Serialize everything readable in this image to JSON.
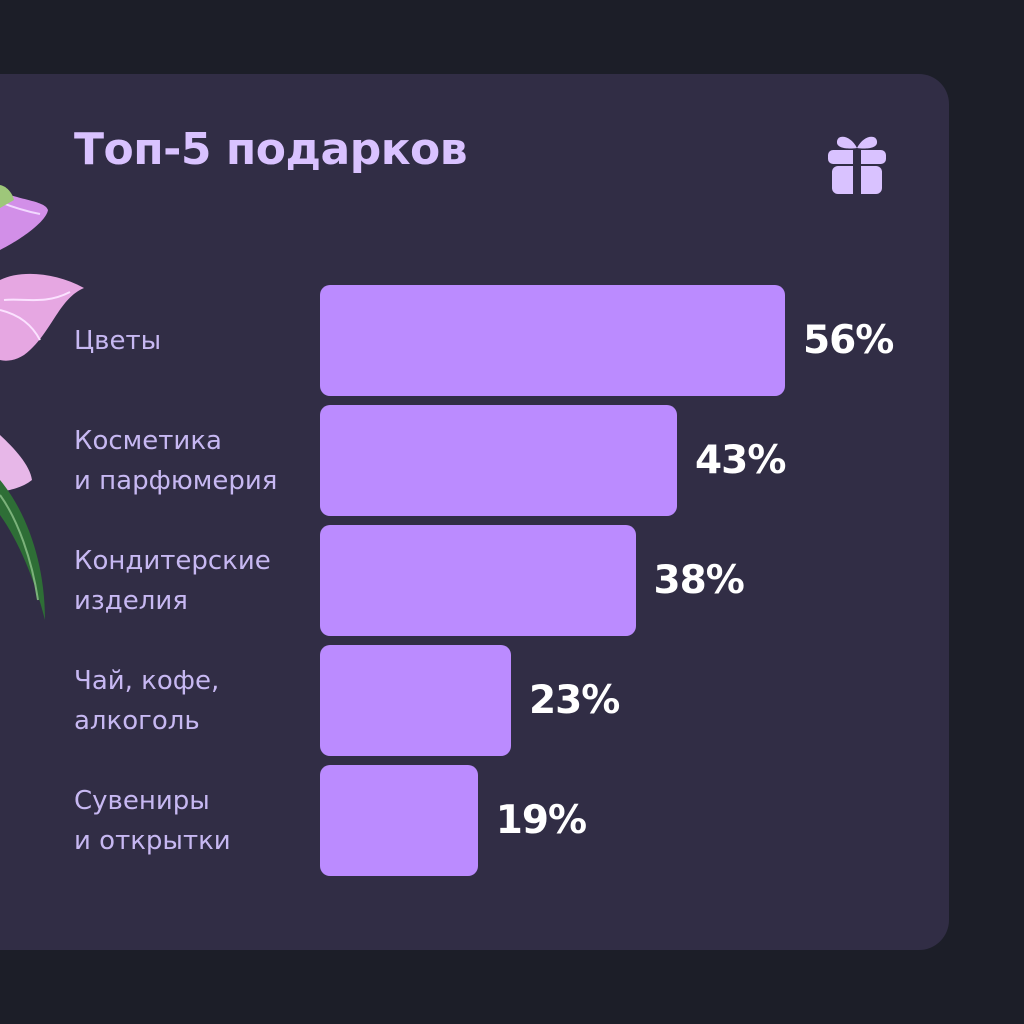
{
  "chart_data": {
    "type": "bar",
    "orientation": "horizontal",
    "title": "Топ-5 подарков",
    "categories": [
      "Цветы",
      "Косметика\nи парфюмерия",
      "Кондитерские\nизделия",
      "Чай, кофе,\nалкоголь",
      "Сувениры\nи открытки"
    ],
    "values": [
      56,
      43,
      38,
      23,
      19
    ],
    "value_labels": [
      "56%",
      "43%",
      "38%",
      "23%",
      "19%"
    ],
    "bar_color": "#bb8bff",
    "grid": false
  },
  "icons": {
    "header": "gift-icon",
    "decoration": "flower-decoration"
  },
  "colors": {
    "background": "#1c1e28",
    "card": "#312d45",
    "title": "#d9c2ff",
    "label": "#c7b8f2",
    "value": "#ffffff"
  }
}
